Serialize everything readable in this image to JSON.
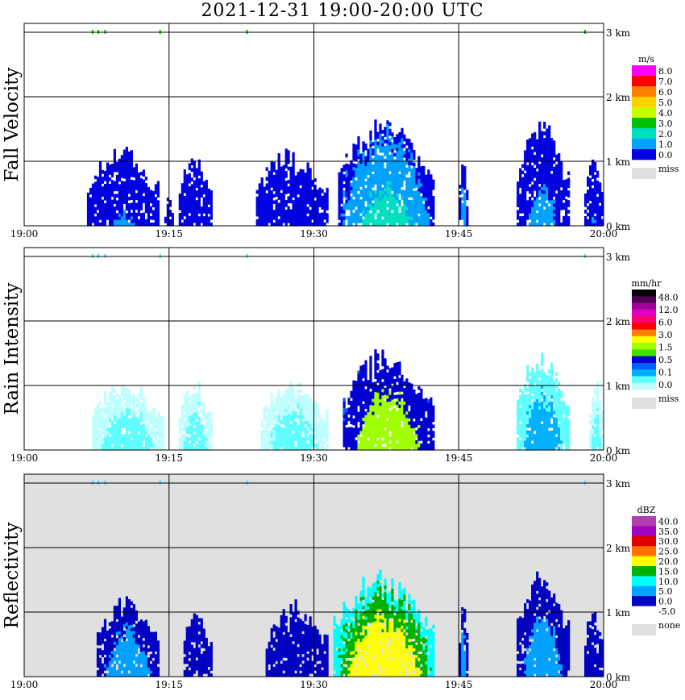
{
  "title": "2021-12-31   19:00-20:00 UTC",
  "x_ticks": [
    "19:00",
    "19:15",
    "19:30",
    "19:45",
    "20:00"
  ],
  "height_ticks": [
    "3 km",
    "2 km",
    "1 km",
    "0 km"
  ],
  "panels": [
    {
      "name": "fall-velocity",
      "ylabel": "Fall Velocity",
      "background": "#ffffff",
      "legend": {
        "unit": "m/s",
        "levels": [
          "8.0",
          "7.0",
          "6.0",
          "5.0",
          "4.0",
          "3.0",
          "2.0",
          "1.0",
          "0.0"
        ],
        "colors": [
          "#ff00ff",
          "#ff0000",
          "#ff8000",
          "#ffd000",
          "#c8ff00",
          "#00c000",
          "#00e0c0",
          "#00a0ff",
          "#0000e0"
        ],
        "miss_label": "miss"
      }
    },
    {
      "name": "rain-intensity",
      "ylabel": "Rain Intensity",
      "background": "#ffffff",
      "legend": {
        "unit": "mm/hr",
        "levels": [
          "48.0",
          "12.0",
          "6.0",
          "3.0",
          "1.5",
          "0.5",
          "0.1",
          "0.0"
        ],
        "colors": [
          "#000000",
          "#500050",
          "#a000a0",
          "#e000c0",
          "#ff0070",
          "#ff0000",
          "#ff8000",
          "#ffff00",
          "#a0ff00",
          "#40e000",
          "#0000d0",
          "#0060ff",
          "#00b0ff",
          "#60ffff",
          "#c0ffff"
        ],
        "miss_label": "miss"
      }
    },
    {
      "name": "reflectivity",
      "ylabel": "Reflectivity",
      "background": "#e0e0e0",
      "legend": {
        "unit": "dBZ",
        "levels": [
          "40.0",
          "35.0",
          "30.0",
          "25.0",
          "20.0",
          "15.0",
          "10.0",
          "5.0",
          "0.0",
          "-5.0"
        ],
        "colors": [
          "#b040b0",
          "#a000c0",
          "#e00000",
          "#ff7000",
          "#ffff00",
          "#00b000",
          "#00ffff",
          "#00a0ff",
          "#0000c0",
          "#ffffff"
        ],
        "miss_label": "none"
      }
    }
  ],
  "chart_data": {
    "type": "heatmap",
    "title": "2021-12-31   19:00-20:00 UTC",
    "x_range_minutes_utc": [
      0,
      60
    ],
    "x_start": "19:00",
    "y_range_km": [
      0,
      3.1
    ],
    "series": [
      {
        "name": "Fall Velocity (m/s)",
        "echo_regions": [
          {
            "t0": 6.5,
            "t1": 14.0,
            "top_km": 1.1,
            "value": 1.0
          },
          {
            "t0": 14.5,
            "t1": 15.5,
            "top_km": 0.4,
            "value": 0.8
          },
          {
            "t0": 16.0,
            "t1": 19.5,
            "top_km": 1.0,
            "value": 0.8
          },
          {
            "t0": 24.0,
            "t1": 31.5,
            "top_km": 1.05,
            "value": 0.8
          },
          {
            "t0": 32.5,
            "t1": 42.5,
            "top_km": 1.5,
            "value": 2.0
          },
          {
            "t0": 45.0,
            "t1": 46.0,
            "top_km": 1.1,
            "value": 1.5
          },
          {
            "t0": 51.0,
            "t1": 56.5,
            "top_km": 1.5,
            "value": 1.2
          },
          {
            "t0": 58.0,
            "t1": 60.0,
            "top_km": 1.0,
            "value": 1.0
          }
        ]
      },
      {
        "name": "Rain Intensity (mm/hr)",
        "echo_regions": [
          {
            "t0": 7.0,
            "t1": 14.5,
            "top_km": 1.0,
            "value": 0.1
          },
          {
            "t0": 16.0,
            "t1": 19.5,
            "top_km": 1.0,
            "value": 0.1
          },
          {
            "t0": 24.5,
            "t1": 31.5,
            "top_km": 1.0,
            "value": 0.1
          },
          {
            "t0": 33.0,
            "t1": 42.5,
            "top_km": 1.4,
            "value": 1.5
          },
          {
            "t0": 51.0,
            "t1": 56.5,
            "top_km": 1.4,
            "value": 0.2
          },
          {
            "t0": 58.5,
            "t1": 60.0,
            "top_km": 1.0,
            "value": 0.1
          }
        ]
      },
      {
        "name": "Reflectivity (dBZ)",
        "echo_regions": [
          {
            "t0": 7.5,
            "t1": 14.0,
            "top_km": 1.1,
            "value": 5.0
          },
          {
            "t0": 16.5,
            "t1": 19.5,
            "top_km": 1.0,
            "value": 0.0
          },
          {
            "t0": 25.0,
            "t1": 31.5,
            "top_km": 1.05,
            "value": 0.0
          },
          {
            "t0": 32.0,
            "t1": 42.5,
            "top_km": 1.5,
            "value": 20.0
          },
          {
            "t0": 45.0,
            "t1": 46.0,
            "top_km": 1.1,
            "value": 5.0
          },
          {
            "t0": 51.0,
            "t1": 56.5,
            "top_km": 1.5,
            "value": 5.0
          },
          {
            "t0": 58.0,
            "t1": 60.0,
            "top_km": 1.0,
            "value": 3.0
          }
        ]
      }
    ]
  }
}
